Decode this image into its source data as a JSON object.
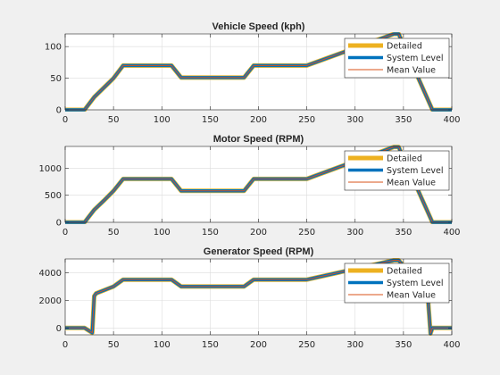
{
  "chart_data": [
    {
      "type": "line",
      "title": "Vehicle Speed (kph)",
      "xlim": [
        0,
        400
      ],
      "ylim": [
        0,
        120
      ],
      "xticks": [
        0,
        50,
        100,
        150,
        200,
        250,
        300,
        350,
        400
      ],
      "yticks": [
        0,
        50,
        100
      ],
      "grid": true,
      "legend_location": "right",
      "series": [
        {
          "name": "Detailed",
          "color": "#EDB120",
          "x": [
            0,
            20,
            30,
            40,
            50,
            60,
            110,
            120,
            185,
            195,
            250,
            340,
            345,
            380,
            400
          ],
          "y": [
            0,
            0,
            20,
            35,
            50,
            70,
            70,
            51,
            51,
            70,
            70,
            120,
            120,
            0,
            0
          ]
        },
        {
          "name": "System Level",
          "color": "#0072BD",
          "x": [
            0,
            20,
            30,
            40,
            50,
            60,
            110,
            120,
            185,
            195,
            250,
            340,
            345,
            380,
            400
          ],
          "y": [
            0,
            0,
            20,
            35,
            50,
            70,
            70,
            51,
            51,
            70,
            70,
            120,
            120,
            0,
            0
          ]
        },
        {
          "name": "Mean Value",
          "color": "#D95319",
          "x": [
            0,
            20,
            30,
            40,
            50,
            60,
            110,
            120,
            185,
            195,
            250,
            340,
            345,
            380,
            400
          ],
          "y": [
            0,
            0,
            20,
            35,
            50,
            70,
            70,
            51,
            51,
            70,
            70,
            120,
            120,
            0,
            0
          ]
        }
      ]
    },
    {
      "type": "line",
      "title": "Motor Speed (RPM)",
      "xlim": [
        0,
        400
      ],
      "ylim": [
        0,
        1400
      ],
      "xticks": [
        0,
        50,
        100,
        150,
        200,
        250,
        300,
        350,
        400
      ],
      "yticks": [
        0,
        500,
        1000
      ],
      "grid": true,
      "legend_location": "right",
      "series": [
        {
          "name": "Detailed",
          "color": "#EDB120",
          "x": [
            0,
            20,
            30,
            40,
            50,
            60,
            110,
            120,
            185,
            195,
            250,
            340,
            345,
            380,
            400
          ],
          "y": [
            0,
            0,
            230,
            400,
            580,
            800,
            800,
            580,
            580,
            800,
            800,
            1390,
            1390,
            0,
            0
          ]
        },
        {
          "name": "System Level",
          "color": "#0072BD",
          "x": [
            0,
            20,
            30,
            40,
            50,
            60,
            110,
            120,
            185,
            195,
            250,
            340,
            345,
            380,
            400
          ],
          "y": [
            0,
            0,
            230,
            400,
            580,
            800,
            800,
            580,
            580,
            800,
            800,
            1390,
            1390,
            0,
            0
          ]
        },
        {
          "name": "Mean Value",
          "color": "#D95319",
          "x": [
            0,
            20,
            30,
            40,
            50,
            60,
            110,
            120,
            185,
            195,
            250,
            340,
            345,
            380,
            400
          ],
          "y": [
            0,
            0,
            230,
            400,
            580,
            800,
            800,
            580,
            580,
            800,
            800,
            1390,
            1390,
            0,
            0
          ]
        }
      ]
    },
    {
      "type": "line",
      "title": "Generator Speed (RPM)",
      "xlim": [
        0,
        400
      ],
      "ylim": [
        -500,
        5000
      ],
      "xticks": [
        0,
        50,
        100,
        150,
        200,
        250,
        300,
        350,
        400
      ],
      "yticks": [
        0,
        2000,
        4000
      ],
      "grid": true,
      "legend_location": "right",
      "series": [
        {
          "name": "Detailed",
          "color": "#EDB120",
          "x": [
            0,
            20,
            28,
            30,
            32,
            50,
            60,
            110,
            120,
            185,
            195,
            250,
            340,
            345,
            375,
            378,
            380,
            400
          ],
          "y": [
            0,
            0,
            -350,
            2300,
            2500,
            3000,
            3500,
            3500,
            3000,
            3000,
            3500,
            3500,
            4900,
            4900,
            2500,
            -400,
            0,
            0
          ]
        },
        {
          "name": "System Level",
          "color": "#0072BD",
          "x": [
            0,
            20,
            28,
            30,
            32,
            50,
            60,
            110,
            120,
            185,
            195,
            250,
            340,
            345,
            375,
            378,
            380,
            400
          ],
          "y": [
            0,
            0,
            -350,
            2300,
            2500,
            3000,
            3500,
            3500,
            3000,
            3000,
            3500,
            3500,
            4900,
            4900,
            2500,
            -400,
            0,
            0
          ]
        },
        {
          "name": "Mean Value",
          "color": "#D95319",
          "x": [
            0,
            20,
            28,
            30,
            32,
            50,
            60,
            110,
            120,
            185,
            195,
            250,
            340,
            345,
            375,
            378,
            380,
            400
          ],
          "y": [
            0,
            0,
            -350,
            2300,
            2500,
            3000,
            3500,
            3500,
            3000,
            3000,
            3500,
            3500,
            4900,
            4900,
            2500,
            -400,
            0,
            0
          ]
        }
      ]
    }
  ]
}
